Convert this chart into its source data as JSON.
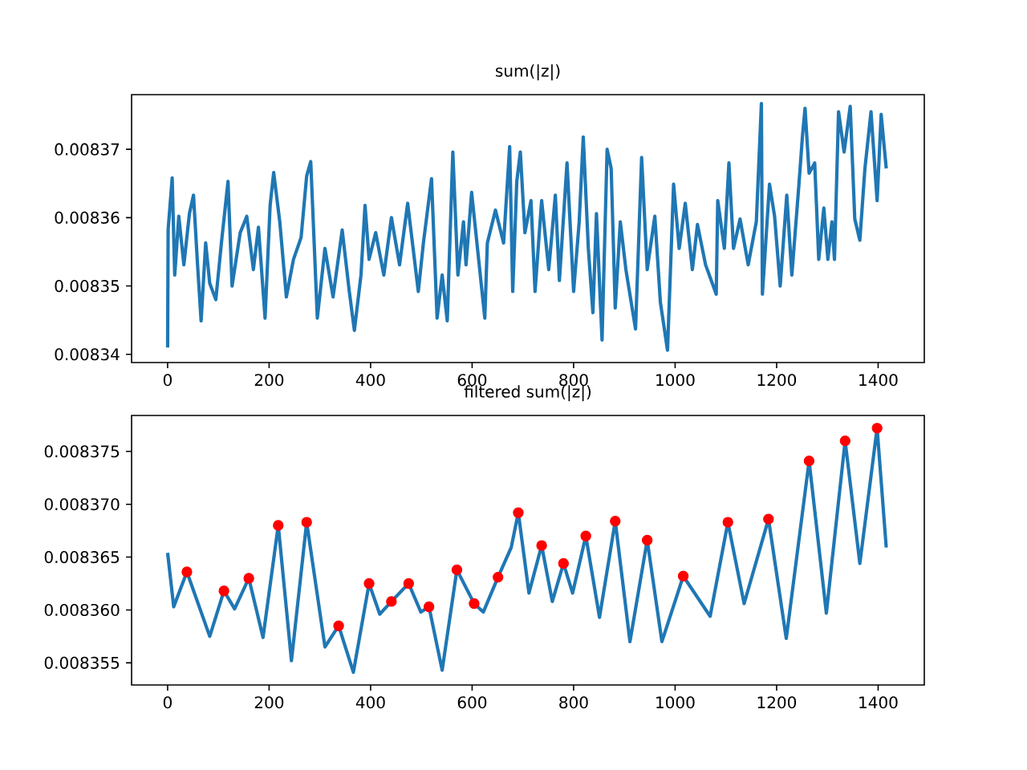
{
  "chart_data": [
    {
      "type": "line",
      "title": "sum(|z|)",
      "xlim": [
        -71,
        1491
      ],
      "xticks": [
        0,
        200,
        400,
        600,
        800,
        1000,
        1200,
        1400
      ],
      "ylim": [
        0.0083388,
        0.008378
      ],
      "yticks": [
        0.00834,
        0.00835,
        0.00836,
        0.00837
      ],
      "x": [
        0,
        1,
        9,
        14,
        22,
        32,
        43,
        51,
        59,
        66,
        75,
        83,
        95,
        106,
        119,
        127,
        143,
        156,
        169,
        179,
        192,
        202,
        209,
        221,
        234,
        248,
        263,
        274,
        282,
        295,
        310,
        326,
        344,
        358,
        368,
        381,
        389,
        397,
        410,
        426,
        441,
        457,
        473,
        494,
        504,
        520,
        531,
        541,
        551,
        562,
        572,
        583,
        588,
        599,
        625,
        630,
        646,
        662,
        674,
        680,
        688,
        695,
        704,
        716,
        724,
        737,
        751,
        764,
        772,
        787,
        800,
        811,
        819,
        829,
        838,
        845,
        856,
        866,
        874,
        882,
        892,
        903,
        922,
        934,
        945,
        960,
        971,
        985,
        997,
        1008,
        1020,
        1034,
        1044,
        1060,
        1081,
        1084,
        1097,
        1106,
        1115,
        1128,
        1144,
        1160,
        1170,
        1172,
        1186,
        1196,
        1207,
        1220,
        1230,
        1244,
        1251,
        1256,
        1264,
        1275,
        1283,
        1293,
        1301,
        1309,
        1314,
        1322,
        1333,
        1345,
        1354,
        1364,
        1374,
        1386,
        1398,
        1406,
        1416
      ],
      "series": [
        {
          "color": "#1f77b4",
          "values": [
            0.008341,
            0.0083582,
            0.0083658,
            0.0083516,
            0.0083602,
            0.0083531,
            0.0083606,
            0.0083633,
            0.0083531,
            0.0083449,
            0.0083563,
            0.0083504,
            0.008348,
            0.0083563,
            0.0083653,
            0.00835,
            0.0083578,
            0.0083602,
            0.0083524,
            0.0083586,
            0.0083453,
            0.0083618,
            0.0083666,
            0.0083594,
            0.0083484,
            0.0083539,
            0.0083571,
            0.0083661,
            0.0083682,
            0.0083453,
            0.0083555,
            0.0083484,
            0.0083582,
            0.0083492,
            0.0083435,
            0.0083516,
            0.0083618,
            0.0083539,
            0.0083578,
            0.0083516,
            0.00836,
            0.0083531,
            0.0083621,
            0.0083492,
            0.0083563,
            0.0083657,
            0.0083453,
            0.0083516,
            0.0083449,
            0.0083696,
            0.0083516,
            0.0083594,
            0.0083531,
            0.0083637,
            0.0083453,
            0.0083563,
            0.0083611,
            0.0083563,
            0.0083704,
            0.0083492,
            0.0083653,
            0.0083696,
            0.0083578,
            0.0083625,
            0.0083492,
            0.0083625,
            0.0083524,
            0.0083633,
            0.0083508,
            0.008368,
            0.0083492,
            0.0083594,
            0.0083718,
            0.0083555,
            0.0083461,
            0.0083606,
            0.0083421,
            0.00837,
            0.0083672,
            0.0083468,
            0.0083594,
            0.0083524,
            0.0083437,
            0.0083688,
            0.0083524,
            0.0083602,
            0.0083476,
            0.0083406,
            0.0083649,
            0.0083555,
            0.0083621,
            0.0083524,
            0.008359,
            0.0083531,
            0.0083488,
            0.0083625,
            0.0083555,
            0.008368,
            0.0083555,
            0.0083598,
            0.0083531,
            0.0083594,
            0.0083767,
            0.0083488,
            0.0083649,
            0.0083602,
            0.00835,
            0.0083633,
            0.0083516,
            0.0083649,
            0.008372,
            0.008376,
            0.0083665,
            0.008368,
            0.0083539,
            0.0083614,
            0.0083539,
            0.0083594,
            0.0083539,
            0.0083755,
            0.0083696,
            0.0083763,
            0.0083598,
            0.0083567,
            0.0083672,
            0.0083755,
            0.0083625,
            0.0083751,
            0.0083672
          ]
        }
      ]
    },
    {
      "type": "line",
      "title": "filtered sum(|z|)",
      "xlim": [
        -71,
        1491
      ],
      "xticks": [
        0,
        200,
        400,
        600,
        800,
        1000,
        1200,
        1400
      ],
      "ylim": [
        0.0083529,
        0.0083784
      ],
      "yticks": [
        0.008355,
        {
          "value": 0.00836,
          "label": "0.008360"
        },
        0.008365,
        {
          "value": 0.00837,
          "label": "0.008370"
        },
        0.008375
      ],
      "x": [
        0,
        12,
        38,
        83,
        111,
        132,
        160,
        188,
        218,
        244,
        274,
        310,
        337,
        366,
        397,
        418,
        441,
        475,
        499,
        515,
        541,
        570,
        604,
        622,
        651,
        677,
        691,
        712,
        737,
        758,
        780,
        798,
        824,
        851,
        882,
        911,
        945,
        974,
        1016,
        1069,
        1104,
        1136,
        1184,
        1219,
        1264,
        1298,
        1335,
        1364,
        1398,
        1416
      ],
      "series": [
        {
          "color": "#1f77b4",
          "values": [
            0.0083654,
            0.0083603,
            0.0083636,
            0.0083575,
            0.0083618,
            0.0083601,
            0.008363,
            0.0083574,
            0.008368,
            0.0083552,
            0.0083683,
            0.0083565,
            0.0083585,
            0.0083541,
            0.0083625,
            0.0083596,
            0.0083608,
            0.0083625,
            0.0083598,
            0.0083603,
            0.0083543,
            0.0083638,
            0.0083606,
            0.0083598,
            0.0083631,
            0.0083659,
            0.0083692,
            0.0083616,
            0.0083661,
            0.0083608,
            0.0083644,
            0.0083616,
            0.008367,
            0.0083593,
            0.0083684,
            0.008357,
            0.0083666,
            0.008357,
            0.0083632,
            0.0083594,
            0.0083683,
            0.0083606,
            0.0083686,
            0.0083573,
            0.0083741,
            0.0083597,
            0.008376,
            0.0083644,
            0.0083772,
            0.0083659
          ]
        },
        {
          "type": "scatter",
          "color": "#ff0000",
          "marker": "circle",
          "x": [
            38,
            111,
            160,
            218,
            274,
            337,
            397,
            441,
            475,
            515,
            570,
            604,
            651,
            691,
            737,
            780,
            824,
            882,
            945,
            1016,
            1104,
            1184,
            1264,
            1335,
            1398
          ],
          "values": [
            0.0083636,
            0.0083618,
            0.008363,
            0.008368,
            0.0083683,
            0.0083585,
            0.0083625,
            0.0083608,
            0.0083625,
            0.0083603,
            0.0083638,
            0.0083606,
            0.0083631,
            0.0083692,
            0.0083661,
            0.0083644,
            0.008367,
            0.0083684,
            0.0083666,
            0.0083632,
            0.0083683,
            0.0083686,
            0.0083741,
            0.008376,
            0.0083772
          ]
        }
      ]
    }
  ]
}
